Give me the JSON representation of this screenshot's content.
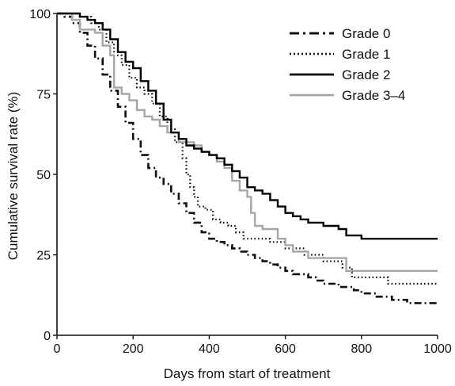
{
  "chart_data": {
    "type": "line",
    "title": "",
    "xlabel": "Days from start of treatment",
    "ylabel": "Cumulative survival rate (%)",
    "xlim": [
      0,
      1000
    ],
    "ylim": [
      0,
      100
    ],
    "xticks": [
      0,
      200,
      400,
      600,
      800,
      1000
    ],
    "yticks": [
      0,
      25,
      50,
      75,
      100
    ],
    "grid": false,
    "legend_position": "top-right",
    "series": [
      {
        "name": "Grade 0",
        "color": "#111111",
        "dash": "dash-dot",
        "points": [
          [
            0,
            100
          ],
          [
            20,
            99
          ],
          [
            40,
            97
          ],
          [
            60,
            94
          ],
          [
            80,
            90
          ],
          [
            100,
            86
          ],
          [
            120,
            81
          ],
          [
            140,
            76
          ],
          [
            160,
            71
          ],
          [
            180,
            66
          ],
          [
            200,
            61
          ],
          [
            220,
            56
          ],
          [
            240,
            52
          ],
          [
            260,
            49
          ],
          [
            280,
            47
          ],
          [
            300,
            44
          ],
          [
            320,
            41
          ],
          [
            340,
            38
          ],
          [
            360,
            35
          ],
          [
            380,
            32
          ],
          [
            400,
            30
          ],
          [
            420,
            29
          ],
          [
            440,
            28
          ],
          [
            460,
            27
          ],
          [
            480,
            26
          ],
          [
            500,
            25
          ],
          [
            520,
            24
          ],
          [
            540,
            23
          ],
          [
            560,
            22
          ],
          [
            580,
            21
          ],
          [
            600,
            20
          ],
          [
            620,
            19
          ],
          [
            640,
            19
          ],
          [
            660,
            18
          ],
          [
            680,
            17
          ],
          [
            700,
            16
          ],
          [
            720,
            16
          ],
          [
            740,
            15
          ],
          [
            760,
            15
          ],
          [
            780,
            14
          ],
          [
            800,
            13
          ],
          [
            820,
            13
          ],
          [
            840,
            12
          ],
          [
            860,
            12
          ],
          [
            880,
            11
          ],
          [
            900,
            11
          ],
          [
            920,
            10
          ],
          [
            940,
            10
          ],
          [
            960,
            10
          ],
          [
            980,
            10
          ],
          [
            1000,
            10
          ]
        ]
      },
      {
        "name": "Grade 1",
        "color": "#111111",
        "dash": "dotted",
        "points": [
          [
            0,
            100
          ],
          [
            30,
            100
          ],
          [
            60,
            99
          ],
          [
            90,
            97
          ],
          [
            110,
            95
          ],
          [
            130,
            91
          ],
          [
            150,
            87
          ],
          [
            170,
            84
          ],
          [
            190,
            80
          ],
          [
            210,
            77
          ],
          [
            230,
            75
          ],
          [
            250,
            72
          ],
          [
            270,
            68
          ],
          [
            290,
            64
          ],
          [
            310,
            60
          ],
          [
            330,
            55
          ],
          [
            340,
            50
          ],
          [
            350,
            46
          ],
          [
            360,
            43
          ],
          [
            370,
            40
          ],
          [
            390,
            39
          ],
          [
            410,
            36
          ],
          [
            430,
            35
          ],
          [
            450,
            34
          ],
          [
            470,
            32
          ],
          [
            490,
            30
          ],
          [
            520,
            30
          ],
          [
            560,
            29
          ],
          [
            600,
            27
          ],
          [
            650,
            25
          ],
          [
            700,
            23
          ],
          [
            740,
            23
          ],
          [
            750,
            21
          ],
          [
            760,
            21
          ],
          [
            775,
            18
          ],
          [
            850,
            18
          ],
          [
            870,
            16
          ],
          [
            1000,
            16
          ]
        ]
      },
      {
        "name": "Grade 2",
        "color": "#000000",
        "dash": "solid",
        "points": [
          [
            0,
            100
          ],
          [
            30,
            100
          ],
          [
            60,
            99
          ],
          [
            80,
            98
          ],
          [
            100,
            97
          ],
          [
            120,
            95
          ],
          [
            140,
            92
          ],
          [
            160,
            88
          ],
          [
            180,
            85
          ],
          [
            200,
            83
          ],
          [
            220,
            79
          ],
          [
            240,
            76
          ],
          [
            260,
            72
          ],
          [
            280,
            67
          ],
          [
            300,
            63
          ],
          [
            320,
            61
          ],
          [
            340,
            59
          ],
          [
            360,
            58
          ],
          [
            380,
            57
          ],
          [
            400,
            56
          ],
          [
            420,
            55
          ],
          [
            440,
            53
          ],
          [
            460,
            51
          ],
          [
            480,
            49
          ],
          [
            500,
            46
          ],
          [
            520,
            45
          ],
          [
            540,
            44
          ],
          [
            560,
            42
          ],
          [
            580,
            40
          ],
          [
            600,
            38
          ],
          [
            620,
            37
          ],
          [
            640,
            36
          ],
          [
            660,
            35
          ],
          [
            700,
            34
          ],
          [
            740,
            33
          ],
          [
            760,
            31
          ],
          [
            800,
            30
          ],
          [
            1000,
            30
          ]
        ]
      },
      {
        "name": "Grade 3–4",
        "color": "#a6a6a6",
        "dash": "solid",
        "points": [
          [
            0,
            100
          ],
          [
            20,
            100
          ],
          [
            40,
            98
          ],
          [
            60,
            95
          ],
          [
            100,
            94
          ],
          [
            120,
            90
          ],
          [
            140,
            87
          ],
          [
            150,
            77
          ],
          [
            170,
            75
          ],
          [
            190,
            73
          ],
          [
            210,
            70
          ],
          [
            230,
            68
          ],
          [
            250,
            67
          ],
          [
            270,
            65
          ],
          [
            290,
            63
          ],
          [
            320,
            60
          ],
          [
            340,
            60
          ],
          [
            360,
            59
          ],
          [
            380,
            57
          ],
          [
            400,
            56
          ],
          [
            420,
            54
          ],
          [
            440,
            52
          ],
          [
            460,
            48
          ],
          [
            480,
            45
          ],
          [
            500,
            43
          ],
          [
            510,
            38
          ],
          [
            520,
            34
          ],
          [
            540,
            33
          ],
          [
            560,
            33
          ],
          [
            580,
            30
          ],
          [
            600,
            28
          ],
          [
            620,
            26
          ],
          [
            660,
            24
          ],
          [
            700,
            24
          ],
          [
            740,
            24
          ],
          [
            760,
            20
          ],
          [
            1000,
            20
          ]
        ]
      }
    ]
  }
}
